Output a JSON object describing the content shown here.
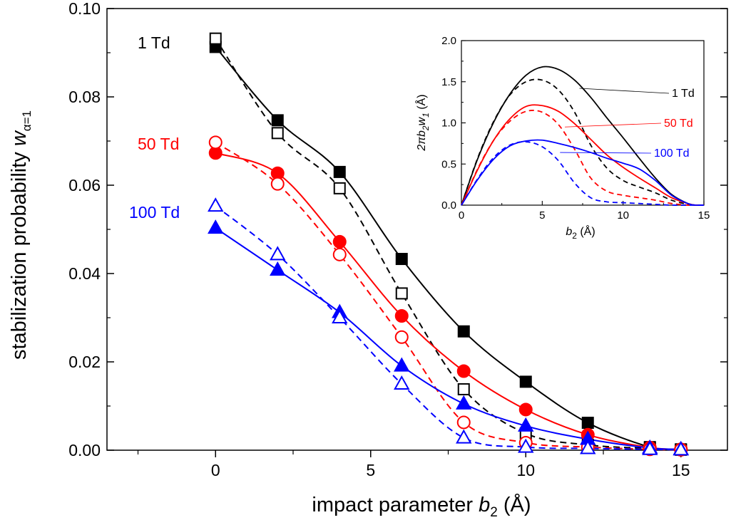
{
  "chart_data": [
    {
      "type": "line",
      "xlabel_main": "impact parameter ",
      "xlabel_var": "b",
      "xlabel_sub": "2",
      "xlabel_unit": "  (Å)",
      "ylabel_main": "stabilization probability ",
      "ylabel_var": "w",
      "ylabel_sub": "α=1",
      "xlim": [
        -3.5,
        16.5
      ],
      "ylim": [
        0,
        0.1
      ],
      "xticks": [
        0,
        5,
        10,
        15
      ],
      "xtick_labels": [
        "0",
        "5",
        "10",
        "15"
      ],
      "yticks": [
        0,
        0.02,
        0.04,
        0.06,
        0.08,
        0.1
      ],
      "ytick_labels": [
        "0.00",
        "0.02",
        "0.04",
        "0.06",
        "0.08",
        "0.10"
      ],
      "x": [
        0,
        2,
        4,
        6,
        8,
        10,
        12,
        14,
        15
      ],
      "series": [
        {
          "name": "1 Td",
          "color": "#000000",
          "marker": "square",
          "filled": true,
          "values": [
            0.0913,
            0.0747,
            0.063,
            0.0433,
            0.0269,
            0.0155,
            0.0062,
            0.0007,
            0.0002
          ]
        },
        {
          "name": "1 Td",
          "color": "#000000",
          "marker": "square",
          "filled": false,
          "values": [
            0.0932,
            0.0718,
            0.0593,
            0.0355,
            0.0138,
            0.0038,
            0.0012,
            0.0004,
            0.0001
          ]
        },
        {
          "name": "50 Td",
          "color": "#ff0000",
          "marker": "circle",
          "filled": true,
          "values": [
            0.0673,
            0.0627,
            0.0472,
            0.0304,
            0.0179,
            0.0092,
            0.0035,
            0.0006,
            0.0002
          ]
        },
        {
          "name": "50 Td",
          "color": "#ff0000",
          "marker": "circle",
          "filled": false,
          "values": [
            0.0697,
            0.0603,
            0.0443,
            0.0256,
            0.0063,
            0.0017,
            0.0007,
            0.0002,
            0.0001
          ]
        },
        {
          "name": "100 Td",
          "color": "#0000ff",
          "marker": "triangle",
          "filled": true,
          "values": [
            0.0503,
            0.0408,
            0.0312,
            0.0191,
            0.0105,
            0.0055,
            0.0025,
            0.0005,
            0.0002
          ]
        },
        {
          "name": "100 Td",
          "color": "#0000ff",
          "marker": "triangle",
          "filled": false,
          "values": [
            0.0553,
            0.0443,
            0.03,
            0.015,
            0.0028,
            0.0007,
            0.0004,
            0.0002,
            0.0001
          ]
        }
      ],
      "labels": [
        {
          "text": "1 Td",
          "color": "#000000"
        },
        {
          "text": "50 Td",
          "color": "#ff0000"
        },
        {
          "text": "100 Td",
          "color": "#0000ff"
        }
      ]
    },
    {
      "type": "line",
      "inset": true,
      "xlabel_var": "b",
      "xlabel_sub": "2",
      "xlabel_unit": "  (Å)",
      "ylabel_text": "2πb",
      "ylabel_sub1": "2",
      "ylabel_w": "w",
      "ylabel_sub2": "1",
      "ylabel_unit": "  (Å)",
      "xlim": [
        0,
        15
      ],
      "ylim": [
        0,
        2.0
      ],
      "xticks": [
        0,
        5,
        10,
        15
      ],
      "xtick_labels": [
        "0",
        "5",
        "10",
        "15"
      ],
      "yticks": [
        0,
        0.5,
        1.0,
        1.5,
        2.0
      ],
      "ytick_labels": [
        "0.0",
        "0.5",
        "1.0",
        "1.5",
        "2.0"
      ],
      "x": [
        0,
        1,
        2,
        3,
        4,
        5,
        6,
        7,
        8,
        9,
        10,
        11,
        12,
        13,
        14,
        14.5,
        15
      ],
      "series": [
        {
          "name": "1 Td",
          "color": "#000000",
          "dash": false,
          "values": [
            0,
            0.56,
            1.01,
            1.35,
            1.58,
            1.68,
            1.65,
            1.52,
            1.31,
            1.06,
            0.82,
            0.57,
            0.33,
            0.13,
            0.02,
            0,
            0
          ]
        },
        {
          "name": "1 Td",
          "color": "#000000",
          "dash": true,
          "values": [
            0,
            0.57,
            1.02,
            1.34,
            1.5,
            1.52,
            1.4,
            1.13,
            0.73,
            0.45,
            0.3,
            0.22,
            0.15,
            0.06,
            0.01,
            0,
            0
          ]
        },
        {
          "name": "50 Td",
          "color": "#ff0000",
          "dash": false,
          "values": [
            0,
            0.43,
            0.79,
            1.05,
            1.2,
            1.21,
            1.14,
            0.99,
            0.8,
            0.61,
            0.46,
            0.33,
            0.21,
            0.09,
            0.02,
            0,
            0
          ]
        },
        {
          "name": "50 Td",
          "color": "#ff0000",
          "dash": true,
          "values": [
            0,
            0.44,
            0.79,
            1.02,
            1.14,
            1.13,
            0.98,
            0.68,
            0.33,
            0.17,
            0.12,
            0.09,
            0.06,
            0.02,
            0,
            0,
            0
          ]
        },
        {
          "name": "100 Td",
          "color": "#0000ff",
          "dash": false,
          "values": [
            0,
            0.31,
            0.56,
            0.72,
            0.78,
            0.79,
            0.75,
            0.7,
            0.64,
            0.57,
            0.51,
            0.44,
            0.3,
            0.12,
            0.02,
            0,
            0
          ]
        },
        {
          "name": "100 Td",
          "color": "#0000ff",
          "dash": true,
          "values": [
            0,
            0.32,
            0.58,
            0.73,
            0.77,
            0.71,
            0.54,
            0.27,
            0.09,
            0.04,
            0.03,
            0.02,
            0.01,
            0,
            0,
            0,
            0
          ]
        }
      ],
      "labels": [
        {
          "text": "1 Td",
          "color": "#000000",
          "pointer_x": 7.3,
          "pointer_y": 1.42
        },
        {
          "text": "50 Td",
          "color": "#ff0000",
          "pointer_x": 6.4,
          "pointer_y": 0.95
        },
        {
          "text": "100 Td",
          "color": "#0000ff",
          "pointer_x": 6.1,
          "pointer_y": 0.64
        }
      ]
    }
  ]
}
